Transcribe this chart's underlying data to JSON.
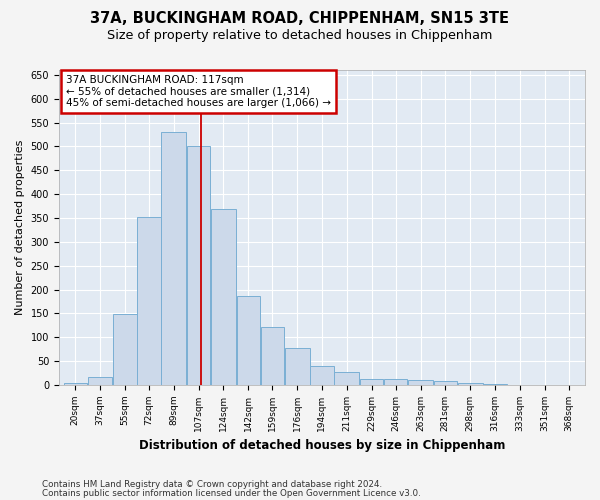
{
  "title": "37A, BUCKINGHAM ROAD, CHIPPENHAM, SN15 3TE",
  "subtitle": "Size of property relative to detached houses in Chippenham",
  "xlabel": "Distribution of detached houses by size in Chippenham",
  "ylabel": "Number of detached properties",
  "bar_color": "#ccd9ea",
  "bar_edge_color": "#7aafd4",
  "fig_bg": "#f4f4f4",
  "ax_bg": "#e2eaf3",
  "grid_color": "#ffffff",
  "vline_color": "#cc0000",
  "ann_border_color": "#cc0000",
  "ann_bg_color": "#ffffff",
  "categories": [
    "20sqm",
    "37sqm",
    "55sqm",
    "72sqm",
    "89sqm",
    "107sqm",
    "124sqm",
    "142sqm",
    "159sqm",
    "176sqm",
    "194sqm",
    "211sqm",
    "229sqm",
    "246sqm",
    "263sqm",
    "281sqm",
    "298sqm",
    "316sqm",
    "333sqm",
    "351sqm",
    "368sqm"
  ],
  "bin_edges": [
    20,
    37,
    55,
    72,
    89,
    107,
    124,
    142,
    159,
    176,
    194,
    211,
    229,
    246,
    263,
    281,
    298,
    316,
    333,
    351,
    368,
    385
  ],
  "values": [
    5,
    17,
    148,
    352,
    530,
    500,
    368,
    187,
    122,
    77,
    40,
    28,
    12,
    13,
    10,
    8,
    5,
    2,
    0,
    0,
    0
  ],
  "property_size": 117,
  "property_label": "37A BUCKINGHAM ROAD: 117sqm",
  "ann_line1": "← 55% of detached houses are smaller (1,314)",
  "ann_line2": "45% of semi-detached houses are larger (1,066) →",
  "ylim": [
    0,
    660
  ],
  "yticks": [
    0,
    50,
    100,
    150,
    200,
    250,
    300,
    350,
    400,
    450,
    500,
    550,
    600,
    650
  ],
  "footer1": "Contains HM Land Registry data © Crown copyright and database right 2024.",
  "footer2": "Contains public sector information licensed under the Open Government Licence v3.0."
}
